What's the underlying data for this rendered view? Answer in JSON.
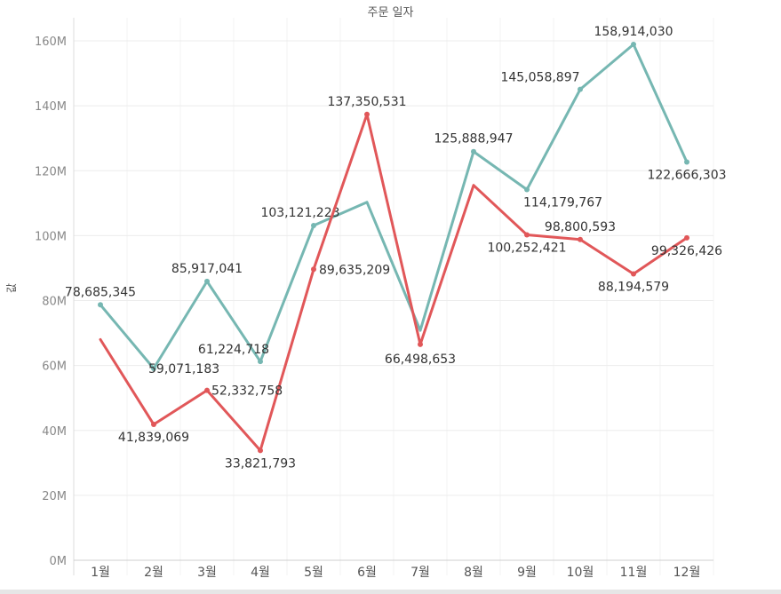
{
  "chart_data": {
    "type": "line",
    "title": "주문 일자",
    "ylabel": "값",
    "categories": [
      "1월",
      "2월",
      "3월",
      "4월",
      "5월",
      "6월",
      "7월",
      "8월",
      "9월",
      "10월",
      "11월",
      "12월"
    ],
    "ylim": [
      0,
      165000000
    ],
    "yticks": [
      {
        "value": 0,
        "label": "0M"
      },
      {
        "value": 20000000,
        "label": "20M"
      },
      {
        "value": 40000000,
        "label": "40M"
      },
      {
        "value": 60000000,
        "label": "60M"
      },
      {
        "value": 80000000,
        "label": "80M"
      },
      {
        "value": 100000000,
        "label": "100M"
      },
      {
        "value": 120000000,
        "label": "120M"
      },
      {
        "value": 140000000,
        "label": "140M"
      },
      {
        "value": 160000000,
        "label": "160M"
      }
    ],
    "grid": true,
    "series": [
      {
        "color": "#76b7b2",
        "values": [
          78685345,
          59071183,
          85917041,
          61224718,
          103121223,
          110300000,
          70800000,
          125888947,
          114179767,
          145058897,
          158914030,
          122666303
        ],
        "labels": [
          "78,685,345",
          "59,071,183",
          "85,917,041",
          "61,224,718",
          "103,121,223",
          "",
          "",
          "125,888,947",
          "114,179,767",
          "145,058,897",
          "158,914,030",
          "122,666,303"
        ]
      },
      {
        "color": "#e15759",
        "values": [
          68000000,
          41839069,
          52332758,
          33821793,
          89635209,
          137350531,
          66498653,
          115500000,
          100252421,
          98800593,
          88194579,
          99326426
        ],
        "labels": [
          "",
          "41,839,069",
          "52,332,758",
          "33,821,793",
          "89,635,209",
          "137,350,531",
          "66,498,653",
          "",
          "100,252,421",
          "98,800,593",
          "88,194,579",
          "99,326,426"
        ]
      }
    ]
  }
}
